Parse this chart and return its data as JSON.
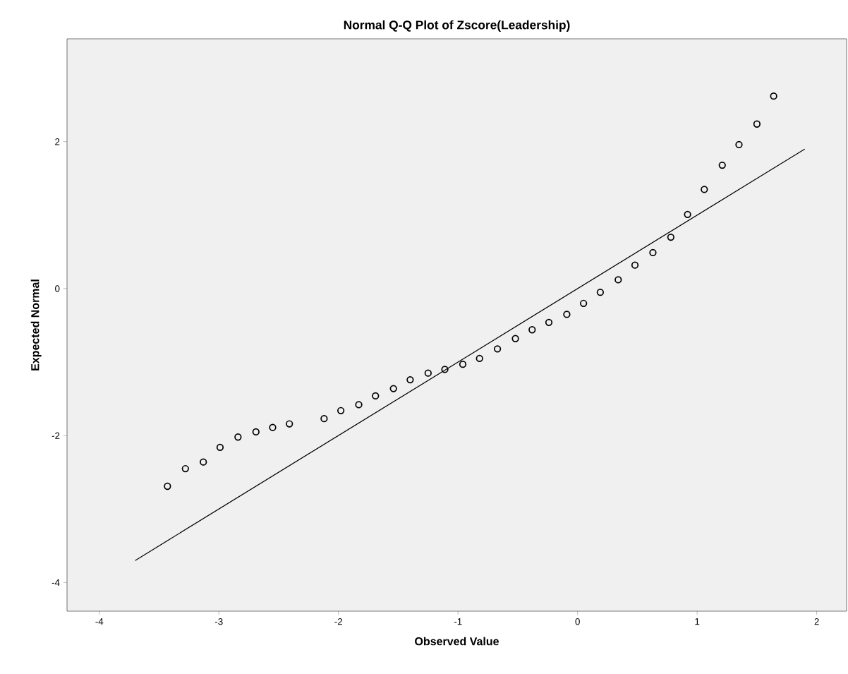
{
  "chart_data": {
    "type": "scatter",
    "title": "Normal Q-Q Plot of Zscore(Leadership)",
    "xlabel": "Observed Value",
    "ylabel": "Expected Normal",
    "xlim": [
      -4.27,
      2.25
    ],
    "ylim": [
      -4.39,
      3.4
    ],
    "xticks": [
      -4,
      -3,
      -2,
      -1,
      0,
      1,
      2
    ],
    "yticks": [
      -4,
      -2,
      0,
      2
    ],
    "grid": false,
    "series": [
      {
        "marker": "circle",
        "color": "#000000",
        "x": [
          -3.43,
          -3.28,
          -3.13,
          -2.99,
          -2.84,
          -2.69,
          -2.55,
          -2.41,
          -2.12,
          -1.98,
          -1.83,
          -1.69,
          -1.54,
          -1.4,
          -1.25,
          -1.11,
          -0.96,
          -0.82,
          -0.67,
          -0.52,
          -0.38,
          -0.24,
          -0.09,
          0.05,
          0.19,
          0.34,
          0.48,
          0.63,
          0.78,
          0.92,
          1.06,
          1.21,
          1.35,
          1.5,
          1.64
        ],
        "values": [
          -2.69,
          -2.45,
          -2.36,
          -2.16,
          -2.02,
          -1.95,
          -1.89,
          -1.84,
          -1.77,
          -1.66,
          -1.58,
          -1.46,
          -1.36,
          -1.24,
          -1.15,
          -1.1,
          -1.03,
          -0.95,
          -0.82,
          -0.68,
          -0.56,
          -0.46,
          -0.35,
          -0.2,
          -0.05,
          0.12,
          0.32,
          0.49,
          0.7,
          1.01,
          1.35,
          1.68,
          1.96,
          2.24,
          2.62
        ]
      },
      {
        "type": "line",
        "color": "#000000",
        "x": [
          -3.7,
          1.9
        ],
        "values": [
          -3.7,
          1.9
        ]
      }
    ]
  }
}
